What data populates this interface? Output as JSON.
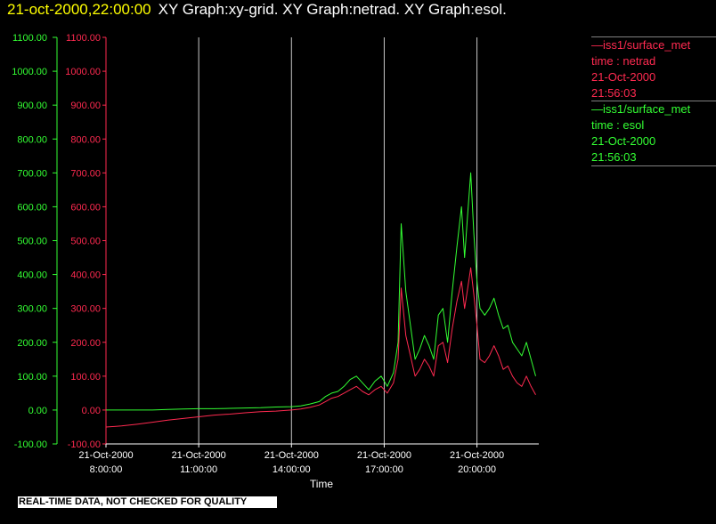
{
  "header": {
    "timestamp": "21-oct-2000,22:00:00",
    "graph_names": "XY Graph:xy-grid.  XY Graph:netrad.  XY Graph:esol."
  },
  "legend": [
    {
      "line1": "—iss1/surface_met",
      "line2": "time : netrad",
      "line3": "21-Oct-2000",
      "line4": "21:56:03",
      "color": "#ff2a50"
    },
    {
      "line1": "—iss1/surface_met",
      "line2": "time : esol",
      "line3": "21-Oct-2000",
      "line4": "21:56:03",
      "color": "#33ff33"
    }
  ],
  "footer_note": "REAL-TIME DATA, NOT CHECKED FOR QUALITY",
  "chart_data": {
    "type": "line",
    "xlabel": "Time",
    "ylim": [
      -100,
      1100
    ],
    "y_ticks": [
      "1100.00",
      "1000.00",
      "900.00",
      "800.00",
      "700.00",
      "600.00",
      "500.00",
      "400.00",
      "300.00",
      "200.00",
      "100.00",
      "0.00",
      "-100.00"
    ],
    "x_ticks": [
      {
        "date": "21-Oct-2000",
        "time": "8:00:00",
        "value": 8
      },
      {
        "date": "21-Oct-2000",
        "time": "11:00:00",
        "value": 11
      },
      {
        "date": "21-Oct-2000",
        "time": "14:00:00",
        "value": 14
      },
      {
        "date": "21-Oct-2000",
        "time": "17:00:00",
        "value": 17
      },
      {
        "date": "21-Oct-2000",
        "time": "20:00:00",
        "value": 20
      }
    ],
    "xlim": [
      8,
      22
    ],
    "vertical_grid": [
      11,
      14,
      17,
      20
    ],
    "series": [
      {
        "name": "time : esol",
        "color": "#33ff33",
        "x": [
          8,
          8.5,
          9,
          9.5,
          10,
          10.5,
          11,
          11.5,
          12,
          12.5,
          13,
          13.5,
          14,
          14.3,
          14.6,
          14.9,
          15.1,
          15.3,
          15.5,
          15.7,
          15.9,
          16.1,
          16.3,
          16.5,
          16.7,
          16.9,
          17.1,
          17.3,
          17.45,
          17.55,
          17.7,
          17.85,
          18,
          18.15,
          18.3,
          18.45,
          18.6,
          18.75,
          18.9,
          19.05,
          19.2,
          19.35,
          19.5,
          19.6,
          19.7,
          19.8,
          19.9,
          20.0,
          20.1,
          20.25,
          20.4,
          20.55,
          20.7,
          20.85,
          21.0,
          21.15,
          21.3,
          21.45,
          21.6,
          21.75,
          21.9
        ],
        "y": [
          0,
          0,
          0,
          0,
          2,
          3,
          4,
          4,
          5,
          6,
          7,
          9,
          10,
          12,
          18,
          25,
          40,
          50,
          55,
          70,
          90,
          100,
          80,
          60,
          85,
          100,
          70,
          110,
          200,
          550,
          350,
          250,
          150,
          180,
          220,
          190,
          150,
          280,
          300,
          200,
          350,
          480,
          600,
          450,
          580,
          700,
          520,
          380,
          300,
          280,
          300,
          330,
          280,
          240,
          250,
          200,
          180,
          160,
          200,
          150,
          100
        ]
      },
      {
        "name": "time : netrad",
        "color": "#ff2a50",
        "x": [
          8,
          8.5,
          9,
          9.5,
          10,
          10.5,
          11,
          11.5,
          12,
          12.5,
          13,
          13.5,
          14,
          14.3,
          14.6,
          14.9,
          15.1,
          15.3,
          15.5,
          15.7,
          15.9,
          16.1,
          16.3,
          16.5,
          16.7,
          16.9,
          17.1,
          17.3,
          17.45,
          17.55,
          17.7,
          17.85,
          18,
          18.15,
          18.3,
          18.45,
          18.6,
          18.75,
          18.9,
          19.05,
          19.2,
          19.35,
          19.5,
          19.6,
          19.7,
          19.8,
          19.9,
          20.0,
          20.1,
          20.25,
          20.4,
          20.55,
          20.7,
          20.85,
          21.0,
          21.15,
          21.3,
          21.45,
          21.6,
          21.75,
          21.9
        ],
        "y": [
          -50,
          -47,
          -42,
          -36,
          -30,
          -25,
          -20,
          -15,
          -12,
          -8,
          -5,
          -3,
          0,
          3,
          8,
          15,
          25,
          35,
          40,
          50,
          60,
          70,
          55,
          45,
          60,
          70,
          50,
          80,
          150,
          360,
          220,
          160,
          100,
          120,
          150,
          130,
          100,
          190,
          200,
          140,
          240,
          320,
          380,
          300,
          360,
          420,
          340,
          250,
          150,
          140,
          160,
          190,
          160,
          120,
          130,
          100,
          80,
          70,
          100,
          70,
          45
        ]
      }
    ]
  }
}
